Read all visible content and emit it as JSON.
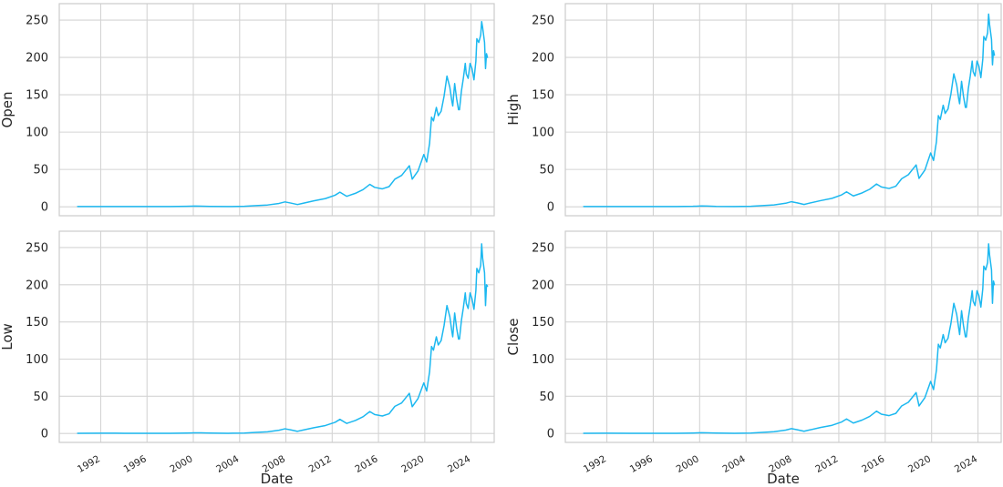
{
  "chart_data": [
    {
      "type": "line",
      "ylabel": "Open",
      "xlabel": "",
      "x_type": "date",
      "xlim": [
        "1988-06-01",
        "2026-01-01"
      ],
      "ylim": [
        -12,
        272
      ],
      "xticks": [
        "1992",
        "1996",
        "2000",
        "2004",
        "2008",
        "2012",
        "2016",
        "2020",
        "2024"
      ],
      "xticks_shown": false,
      "yticks": [
        "0",
        "50",
        "100",
        "150",
        "200",
        "250"
      ],
      "grid": true,
      "color": "#1cb8f0",
      "series": [
        {
          "x": [
            "1990-01-01",
            "1992-01-01",
            "1994-01-01",
            "1996-01-01",
            "1998-01-01",
            "1999-06-01",
            "2000-03-01",
            "2000-09-01",
            "2001-06-01",
            "2003-01-01",
            "2004-06-01",
            "2005-06-01",
            "2006-06-01",
            "2007-06-01",
            "2007-12-01",
            "2008-06-01",
            "2009-01-01",
            "2009-06-01",
            "2010-06-01",
            "2011-06-01",
            "2012-04-01",
            "2012-09-01",
            "2013-04-01",
            "2014-01-01",
            "2014-09-01",
            "2015-04-01",
            "2015-09-01",
            "2016-05-01",
            "2016-12-01",
            "2017-06-01",
            "2018-01-01",
            "2018-09-01",
            "2018-12-01",
            "2019-06-01",
            "2019-12-01",
            "2020-03-01",
            "2020-06-01",
            "2020-08-01",
            "2020-10-01",
            "2021-01-01",
            "2021-03-01",
            "2021-06-01",
            "2021-09-01",
            "2021-12-01",
            "2022-01-01",
            "2022-03-01",
            "2022-05-01",
            "2022-06-01",
            "2022-08-01",
            "2022-10-01",
            "2022-12-01",
            "2023-01-01",
            "2023-03-01",
            "2023-05-01",
            "2023-07-01",
            "2023-08-01",
            "2023-10-01",
            "2023-12-01",
            "2024-02-01",
            "2024-04-01",
            "2024-06-01",
            "2024-07-01",
            "2024-09-01",
            "2024-11-01",
            "2024-12-01",
            "2025-01-01",
            "2025-03-01",
            "2025-04-01",
            "2025-05-01",
            "2025-06-01"
          ],
          "y": [
            0.3,
            0.4,
            0.3,
            0.3,
            0.3,
            0.6,
            1.0,
            0.8,
            0.5,
            0.3,
            0.6,
            1.5,
            2.4,
            4.5,
            6.5,
            5.0,
            3.0,
            4.5,
            8.0,
            11.0,
            15.5,
            19.5,
            14.0,
            18.0,
            23.0,
            30.0,
            26.0,
            24.0,
            27.0,
            37.0,
            42.0,
            55.0,
            37.0,
            48.0,
            70.0,
            60.0,
            85.0,
            120.0,
            115.0,
            133.0,
            122.0,
            128.0,
            148.0,
            175.0,
            170.0,
            160.0,
            142.0,
            135.0,
            165.0,
            145.0,
            130.0,
            130.0,
            155.0,
            172.0,
            192.0,
            178.0,
            172.0,
            192.0,
            185.0,
            170.0,
            195.0,
            225.0,
            220.0,
            230.0,
            248.0,
            240.0,
            220.0,
            185.0,
            205.0,
            200.0
          ]
        }
      ]
    },
    {
      "type": "line",
      "ylabel": "High",
      "xlabel": "",
      "x_type": "date",
      "xlim": [
        "1988-06-01",
        "2026-01-01"
      ],
      "ylim": [
        -12,
        272
      ],
      "xticks": [
        "1992",
        "1996",
        "2000",
        "2004",
        "2008",
        "2012",
        "2016",
        "2020",
        "2024"
      ],
      "xticks_shown": false,
      "yticks": [
        "0",
        "50",
        "100",
        "150",
        "200",
        "250"
      ],
      "grid": true,
      "color": "#1cb8f0",
      "series": [
        {
          "x": [
            "1990-01-01",
            "1992-01-01",
            "1994-01-01",
            "1996-01-01",
            "1998-01-01",
            "1999-06-01",
            "2000-03-01",
            "2000-09-01",
            "2001-06-01",
            "2003-01-01",
            "2004-06-01",
            "2005-06-01",
            "2006-06-01",
            "2007-06-01",
            "2007-12-01",
            "2008-06-01",
            "2009-01-01",
            "2009-06-01",
            "2010-06-01",
            "2011-06-01",
            "2012-04-01",
            "2012-09-01",
            "2013-04-01",
            "2014-01-01",
            "2014-09-01",
            "2015-04-01",
            "2015-09-01",
            "2016-05-01",
            "2016-12-01",
            "2017-06-01",
            "2018-01-01",
            "2018-09-01",
            "2018-12-01",
            "2019-06-01",
            "2019-12-01",
            "2020-03-01",
            "2020-06-01",
            "2020-08-01",
            "2020-10-01",
            "2021-01-01",
            "2021-03-01",
            "2021-06-01",
            "2021-09-01",
            "2021-12-01",
            "2022-01-01",
            "2022-03-01",
            "2022-05-01",
            "2022-06-01",
            "2022-08-01",
            "2022-10-01",
            "2022-12-01",
            "2023-01-01",
            "2023-03-01",
            "2023-05-01",
            "2023-07-01",
            "2023-08-01",
            "2023-10-01",
            "2023-12-01",
            "2024-02-01",
            "2024-04-01",
            "2024-06-01",
            "2024-07-01",
            "2024-09-01",
            "2024-11-01",
            "2024-12-01",
            "2025-01-01",
            "2025-03-01",
            "2025-04-01",
            "2025-05-01",
            "2025-06-01"
          ],
          "y": [
            0.3,
            0.4,
            0.3,
            0.3,
            0.3,
            0.6,
            1.1,
            0.9,
            0.5,
            0.3,
            0.6,
            1.6,
            2.5,
            4.7,
            6.8,
            5.2,
            3.1,
            4.7,
            8.2,
            11.3,
            16.0,
            20.0,
            14.5,
            18.5,
            23.5,
            30.5,
            26.5,
            24.5,
            27.5,
            37.5,
            43.0,
            56.0,
            38.0,
            49.0,
            72.0,
            62.0,
            87.0,
            122.0,
            117.0,
            136.0,
            125.0,
            131.0,
            151.0,
            178.0,
            173.0,
            163.0,
            145.0,
            138.0,
            168.0,
            148.0,
            133.0,
            133.0,
            158.0,
            175.0,
            195.0,
            181.0,
            175.0,
            195.0,
            188.0,
            173.0,
            198.0,
            228.0,
            223.0,
            233.0,
            258.0,
            244.0,
            224.0,
            190.0,
            209.0,
            203.0
          ]
        }
      ]
    },
    {
      "type": "line",
      "ylabel": "Low",
      "xlabel": "Date",
      "x_type": "date",
      "xlim": [
        "1988-06-01",
        "2026-01-01"
      ],
      "ylim": [
        -12,
        272
      ],
      "xticks": [
        "1992",
        "1996",
        "2000",
        "2004",
        "2008",
        "2012",
        "2016",
        "2020",
        "2024"
      ],
      "xticks_shown": true,
      "yticks": [
        "0",
        "50",
        "100",
        "150",
        "200",
        "250"
      ],
      "grid": true,
      "color": "#1cb8f0",
      "series": [
        {
          "x": [
            "1990-01-01",
            "1992-01-01",
            "1994-01-01",
            "1996-01-01",
            "1998-01-01",
            "1999-06-01",
            "2000-03-01",
            "2000-09-01",
            "2001-06-01",
            "2003-01-01",
            "2004-06-01",
            "2005-06-01",
            "2006-06-01",
            "2007-06-01",
            "2007-12-01",
            "2008-06-01",
            "2009-01-01",
            "2009-06-01",
            "2010-06-01",
            "2011-06-01",
            "2012-04-01",
            "2012-09-01",
            "2013-04-01",
            "2014-01-01",
            "2014-09-01",
            "2015-04-01",
            "2015-09-01",
            "2016-05-01",
            "2016-12-01",
            "2017-06-01",
            "2018-01-01",
            "2018-09-01",
            "2018-12-01",
            "2019-06-01",
            "2019-12-01",
            "2020-03-01",
            "2020-06-01",
            "2020-08-01",
            "2020-10-01",
            "2021-01-01",
            "2021-03-01",
            "2021-06-01",
            "2021-09-01",
            "2021-12-01",
            "2022-01-01",
            "2022-03-01",
            "2022-05-01",
            "2022-06-01",
            "2022-08-01",
            "2022-10-01",
            "2022-12-01",
            "2023-01-01",
            "2023-03-01",
            "2023-05-01",
            "2023-07-01",
            "2023-08-01",
            "2023-10-01",
            "2023-12-01",
            "2024-02-01",
            "2024-04-01",
            "2024-06-01",
            "2024-07-01",
            "2024-09-01",
            "2024-11-01",
            "2024-12-01",
            "2025-01-01",
            "2025-03-01",
            "2025-04-01",
            "2025-05-01",
            "2025-06-01"
          ],
          "y": [
            0.3,
            0.4,
            0.3,
            0.3,
            0.3,
            0.6,
            0.9,
            0.8,
            0.5,
            0.3,
            0.6,
            1.4,
            2.3,
            4.4,
            6.3,
            4.8,
            2.9,
            4.4,
            7.8,
            10.7,
            15.0,
            19.0,
            13.5,
            17.5,
            22.5,
            29.5,
            25.5,
            23.5,
            26.5,
            36.5,
            41.0,
            54.0,
            36.0,
            47.0,
            68.0,
            57.0,
            83.0,
            117.0,
            112.0,
            130.0,
            119.0,
            125.0,
            145.0,
            172.0,
            167.0,
            157.0,
            138.0,
            130.0,
            162.0,
            142.0,
            127.0,
            127.0,
            152.0,
            169.0,
            189.0,
            175.0,
            168.0,
            189.0,
            181.0,
            167.0,
            192.0,
            222.0,
            216.0,
            226.0,
            255.0,
            236.0,
            216.0,
            172.0,
            200.0,
            198.0
          ]
        }
      ]
    },
    {
      "type": "line",
      "ylabel": "Close",
      "xlabel": "Date",
      "x_type": "date",
      "xlim": [
        "1988-06-01",
        "2026-01-01"
      ],
      "ylim": [
        -12,
        272
      ],
      "xticks": [
        "1992",
        "1996",
        "2000",
        "2004",
        "2008",
        "2012",
        "2016",
        "2020",
        "2024"
      ],
      "xticks_shown": true,
      "yticks": [
        "0",
        "50",
        "100",
        "150",
        "200",
        "250"
      ],
      "grid": true,
      "color": "#1cb8f0",
      "series": [
        {
          "x": [
            "1990-01-01",
            "1992-01-01",
            "1994-01-01",
            "1996-01-01",
            "1998-01-01",
            "1999-06-01",
            "2000-03-01",
            "2000-09-01",
            "2001-06-01",
            "2003-01-01",
            "2004-06-01",
            "2005-06-01",
            "2006-06-01",
            "2007-06-01",
            "2007-12-01",
            "2008-06-01",
            "2009-01-01",
            "2009-06-01",
            "2010-06-01",
            "2011-06-01",
            "2012-04-01",
            "2012-09-01",
            "2013-04-01",
            "2014-01-01",
            "2014-09-01",
            "2015-04-01",
            "2015-09-01",
            "2016-05-01",
            "2016-12-01",
            "2017-06-01",
            "2018-01-01",
            "2018-09-01",
            "2018-12-01",
            "2019-06-01",
            "2019-12-01",
            "2020-03-01",
            "2020-06-01",
            "2020-08-01",
            "2020-10-01",
            "2021-01-01",
            "2021-03-01",
            "2021-06-01",
            "2021-09-01",
            "2021-12-01",
            "2022-01-01",
            "2022-03-01",
            "2022-05-01",
            "2022-06-01",
            "2022-08-01",
            "2022-10-01",
            "2022-12-01",
            "2023-01-01",
            "2023-03-01",
            "2023-05-01",
            "2023-07-01",
            "2023-08-01",
            "2023-10-01",
            "2023-12-01",
            "2024-02-01",
            "2024-04-01",
            "2024-06-01",
            "2024-07-01",
            "2024-09-01",
            "2024-11-01",
            "2024-12-01",
            "2025-01-01",
            "2025-03-01",
            "2025-04-01",
            "2025-05-01",
            "2025-06-01"
          ],
          "y": [
            0.3,
            0.4,
            0.3,
            0.3,
            0.3,
            0.6,
            1.0,
            0.8,
            0.5,
            0.3,
            0.6,
            1.5,
            2.4,
            4.5,
            6.5,
            5.0,
            3.0,
            4.5,
            8.0,
            11.0,
            15.5,
            19.5,
            14.0,
            18.0,
            23.0,
            30.0,
            26.0,
            24.0,
            27.0,
            37.0,
            42.0,
            55.0,
            37.0,
            48.0,
            70.0,
            59.0,
            85.0,
            120.0,
            115.0,
            133.0,
            122.0,
            128.0,
            148.0,
            175.0,
            170.0,
            160.0,
            142.0,
            133.0,
            165.0,
            145.0,
            130.0,
            130.0,
            155.0,
            172.0,
            192.0,
            178.0,
            172.0,
            192.0,
            185.0,
            170.0,
            195.0,
            225.0,
            220.0,
            230.0,
            255.0,
            240.0,
            220.0,
            175.0,
            205.0,
            200.0
          ]
        }
      ]
    }
  ]
}
